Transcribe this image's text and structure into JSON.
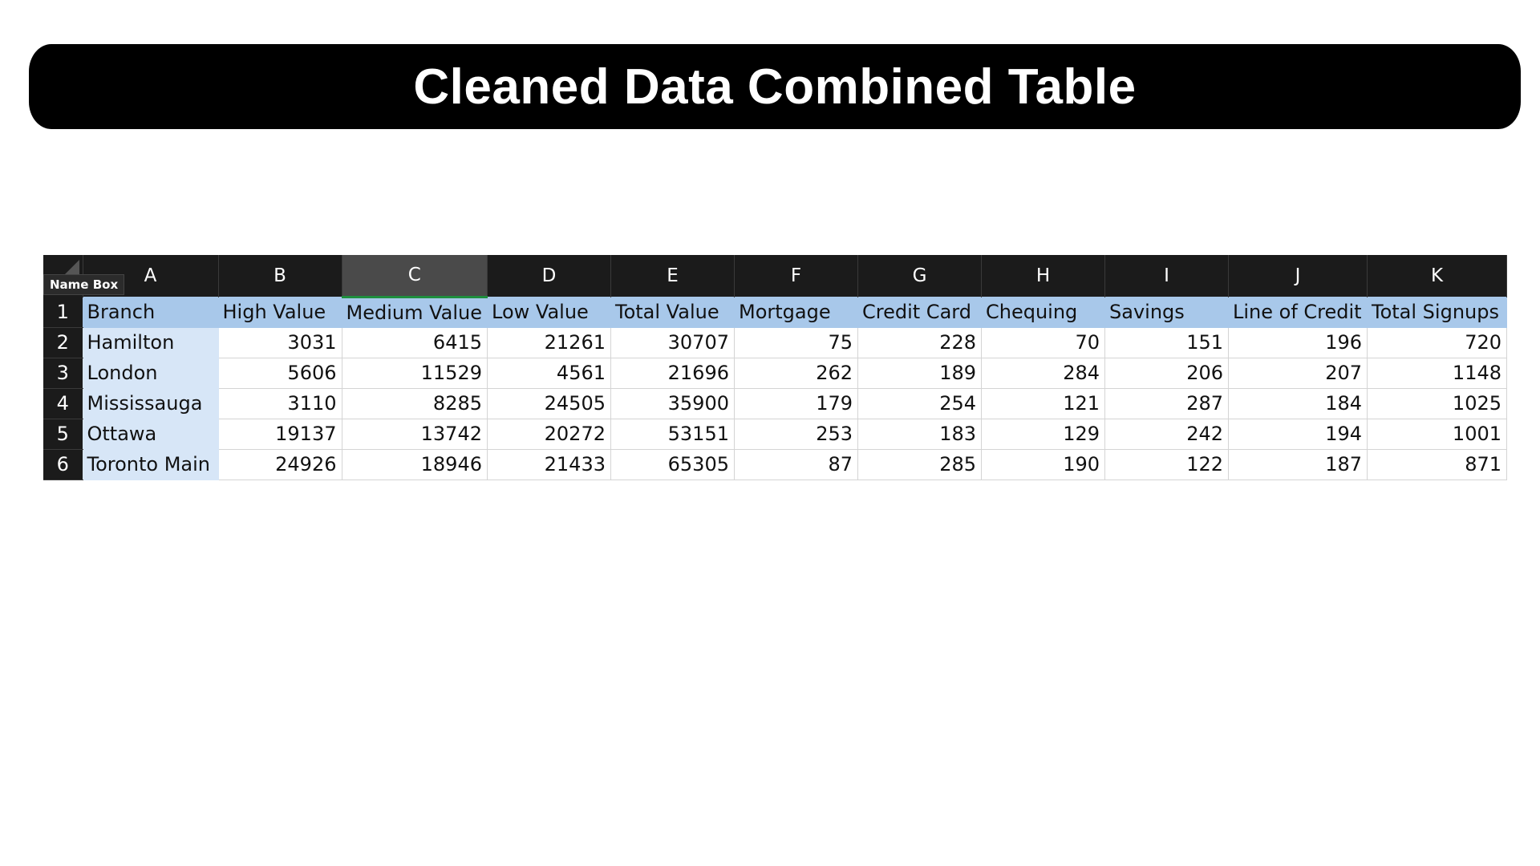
{
  "page": {
    "title": "Cleaned Data Combined Table"
  },
  "sheet": {
    "name_box_tooltip": "Name Box",
    "selected_column": "C",
    "columns": [
      "A",
      "B",
      "C",
      "D",
      "E",
      "F",
      "G",
      "H",
      "I",
      "J",
      "K"
    ],
    "row_numbers": [
      "1",
      "2",
      "3",
      "4",
      "5",
      "6"
    ],
    "headers": [
      "Branch",
      "High Value",
      "Medium Value",
      "Low Value",
      "Total Value",
      "Mortgage",
      "Credit Card",
      "Chequing",
      "Savings",
      "Line of Credit",
      "Total Signups"
    ],
    "rows": [
      [
        "Hamilton",
        "3031",
        "6415",
        "21261",
        "30707",
        "75",
        "228",
        "70",
        "151",
        "196",
        "720"
      ],
      [
        "London",
        "5606",
        "11529",
        "4561",
        "21696",
        "262",
        "189",
        "284",
        "206",
        "207",
        "1148"
      ],
      [
        "Mississauga",
        "3110",
        "8285",
        "24505",
        "35900",
        "179",
        "254",
        "121",
        "287",
        "184",
        "1025"
      ],
      [
        "Ottawa",
        "19137",
        "13742",
        "20272",
        "53151",
        "253",
        "183",
        "129",
        "242",
        "194",
        "1001"
      ],
      [
        "Toronto Main",
        "24926",
        "18946",
        "21433",
        "65305",
        "87",
        "285",
        "190",
        "122",
        "187",
        "871"
      ]
    ]
  },
  "colors": {
    "header_fill": "#a8c8ea",
    "branch_fill": "#d7e6f7",
    "banner": "#000000"
  }
}
